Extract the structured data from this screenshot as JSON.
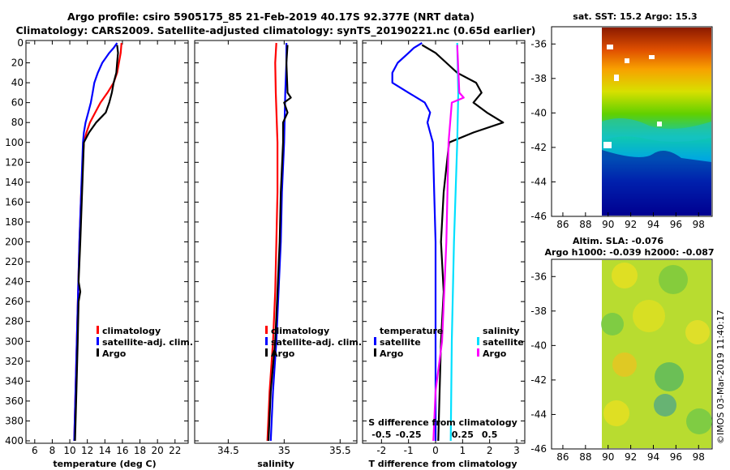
{
  "header": {
    "line1": "Argo profile: csiro 5905175_85 21-Feb-2019 40.17S 92.377E (NRT data)",
    "line2": "Climatology: CARS2009. Satellite-adjusted climatology: synTS_20190221.nc (0.65d earlier)"
  },
  "colors": {
    "climatology": "#ff0000",
    "satellite": "#0000ff",
    "argo": "#000000",
    "sal_satellite": "#00e0ff",
    "sal_argo": "#ff00ff"
  },
  "chart_data": [
    {
      "type": "line",
      "id": "temperature",
      "xlabel": "temperature (deg C)",
      "xlim": [
        5,
        23.5
      ],
      "ylim": [
        0,
        400
      ],
      "xticks": [
        "6",
        "8",
        "10",
        "12",
        "14",
        "16",
        "18",
        "20",
        "22"
      ],
      "yticks": [
        "0",
        "20",
        "40",
        "60",
        "80",
        "100",
        "120",
        "140",
        "160",
        "180",
        "200",
        "220",
        "240",
        "260",
        "280",
        "300",
        "320",
        "340",
        "360",
        "380",
        "400"
      ],
      "legend": [
        "climatology",
        "satellite-adj. clim.",
        "Argo"
      ],
      "series": [
        {
          "name": "climatology",
          "depth": [
            0,
            10,
            20,
            30,
            40,
            50,
            60,
            70,
            80,
            90,
            100,
            150,
            200,
            250,
            300,
            350,
            400
          ],
          "values": [
            15.9,
            15.8,
            15.6,
            15.4,
            15.0,
            14.3,
            13.5,
            12.9,
            12.3,
            11.9,
            11.6,
            11.3,
            11.1,
            10.95,
            10.8,
            10.65,
            10.5
          ]
        },
        {
          "name": "satellite-adj. clim.",
          "depth": [
            0,
            5,
            10,
            20,
            30,
            40,
            50,
            60,
            70,
            80,
            90,
            100,
            150,
            200,
            250,
            300,
            350,
            400
          ],
          "values": [
            15.4,
            15.0,
            14.5,
            13.7,
            13.2,
            12.8,
            12.6,
            12.4,
            12.1,
            11.8,
            11.6,
            11.5,
            11.3,
            11.1,
            10.95,
            10.8,
            10.65,
            10.5
          ]
        },
        {
          "name": "Argo",
          "depth": [
            2,
            10,
            20,
            30,
            40,
            50,
            60,
            70,
            80,
            90,
            100,
            150,
            200,
            240,
            250,
            260,
            300,
            350,
            400
          ],
          "values": [
            15.4,
            15.5,
            15.4,
            15.3,
            15.0,
            14.8,
            14.5,
            14.1,
            13.0,
            12.2,
            11.6,
            11.4,
            11.2,
            11.0,
            11.2,
            11.0,
            10.9,
            10.75,
            10.6
          ]
        }
      ]
    },
    {
      "type": "line",
      "id": "salinity",
      "xlabel": "salinity",
      "xlim": [
        34.2,
        35.65
      ],
      "ylim": [
        0,
        400
      ],
      "xticks": [
        "34.5",
        "35",
        "35.5"
      ],
      "legend": [
        "climatology",
        "satellite-adj. clim.",
        "Argo"
      ],
      "series": [
        {
          "name": "climatology",
          "depth": [
            0,
            20,
            50,
            100,
            150,
            200,
            250,
            300,
            350,
            400
          ],
          "values": [
            34.93,
            34.92,
            34.925,
            34.94,
            34.94,
            34.93,
            34.92,
            34.9,
            34.87,
            34.85
          ]
        },
        {
          "name": "satellite-adj. clim.",
          "depth": [
            0,
            20,
            50,
            100,
            150,
            200,
            250,
            300,
            350,
            400
          ],
          "values": [
            35.02,
            35.02,
            35.01,
            35.0,
            34.98,
            34.97,
            34.95,
            34.93,
            34.9,
            34.88
          ]
        },
        {
          "name": "Argo",
          "depth": [
            2,
            20,
            50,
            55,
            60,
            70,
            80,
            100,
            150,
            200,
            250,
            300,
            350,
            400
          ],
          "values": [
            35.03,
            35.02,
            35.03,
            35.06,
            35.0,
            35.03,
            34.99,
            34.99,
            34.97,
            34.96,
            34.94,
            34.92,
            34.88,
            34.86
          ]
        }
      ]
    },
    {
      "type": "line",
      "id": "difference",
      "xlabel": "T difference from climatology",
      "xlabel2": "S difference from climatology",
      "xlim": [
        -2.7,
        3.3
      ],
      "ylim": [
        0,
        400
      ],
      "xticks": [
        "-2",
        "-1",
        "0",
        "1",
        "2",
        "3"
      ],
      "xticks2": [
        "-0.5",
        "-0.25",
        "0.25",
        "0.5"
      ],
      "legend_temperature_title": "temperature",
      "legend_salinity_title": "salinity",
      "legend_labels": {
        "satellite": "satellite",
        "argo": "Argo"
      },
      "series": [
        {
          "name": "T satellite",
          "depth": [
            0,
            5,
            10,
            20,
            30,
            40,
            50,
            60,
            70,
            80,
            90,
            100,
            150,
            200,
            300,
            400
          ],
          "values": [
            -0.5,
            -0.8,
            -1.0,
            -1.4,
            -1.6,
            -1.6,
            -1.0,
            -0.4,
            -0.2,
            -0.3,
            -0.2,
            -0.1,
            -0.05,
            0.0,
            0.0,
            0.0
          ]
        },
        {
          "name": "T Argo",
          "depth": [
            2,
            10,
            20,
            30,
            40,
            50,
            60,
            70,
            80,
            90,
            100,
            150,
            200,
            250,
            300,
            350,
            400
          ],
          "values": [
            -0.5,
            0.0,
            0.4,
            0.8,
            1.5,
            1.7,
            1.4,
            1.9,
            2.5,
            1.4,
            0.5,
            0.3,
            0.2,
            0.3,
            0.2,
            0.15,
            0.1
          ]
        },
        {
          "name": "S satellite",
          "depth": [
            0,
            50,
            100,
            200,
            300,
            400
          ],
          "values": [
            0.2,
            0.21,
            0.2,
            0.17,
            0.15,
            0.14
          ]
        },
        {
          "name": "S Argo",
          "depth": [
            2,
            50,
            55,
            60,
            100,
            200,
            250,
            300,
            350,
            400
          ],
          "values": [
            0.2,
            0.22,
            0.26,
            0.15,
            0.12,
            0.1,
            0.08,
            0.06,
            0.0,
            -0.02
          ]
        }
      ]
    }
  ],
  "maps": {
    "sst_title": "sat. SST: 15.2 Argo: 15.3",
    "sla_title1": "Altim. SLA: -0.076",
    "sla_title2": "Argo h1000: -0.039 h2000: -0.087",
    "lat_ticks": [
      "-36",
      "-38",
      "-40",
      "-42",
      "-44",
      "-46"
    ],
    "lon_ticks": [
      "86",
      "88",
      "90",
      "92",
      "94",
      "96",
      "98"
    ]
  },
  "footer": {
    "watermark": "©IMOS 03-Mar-2019 11:40:17"
  }
}
